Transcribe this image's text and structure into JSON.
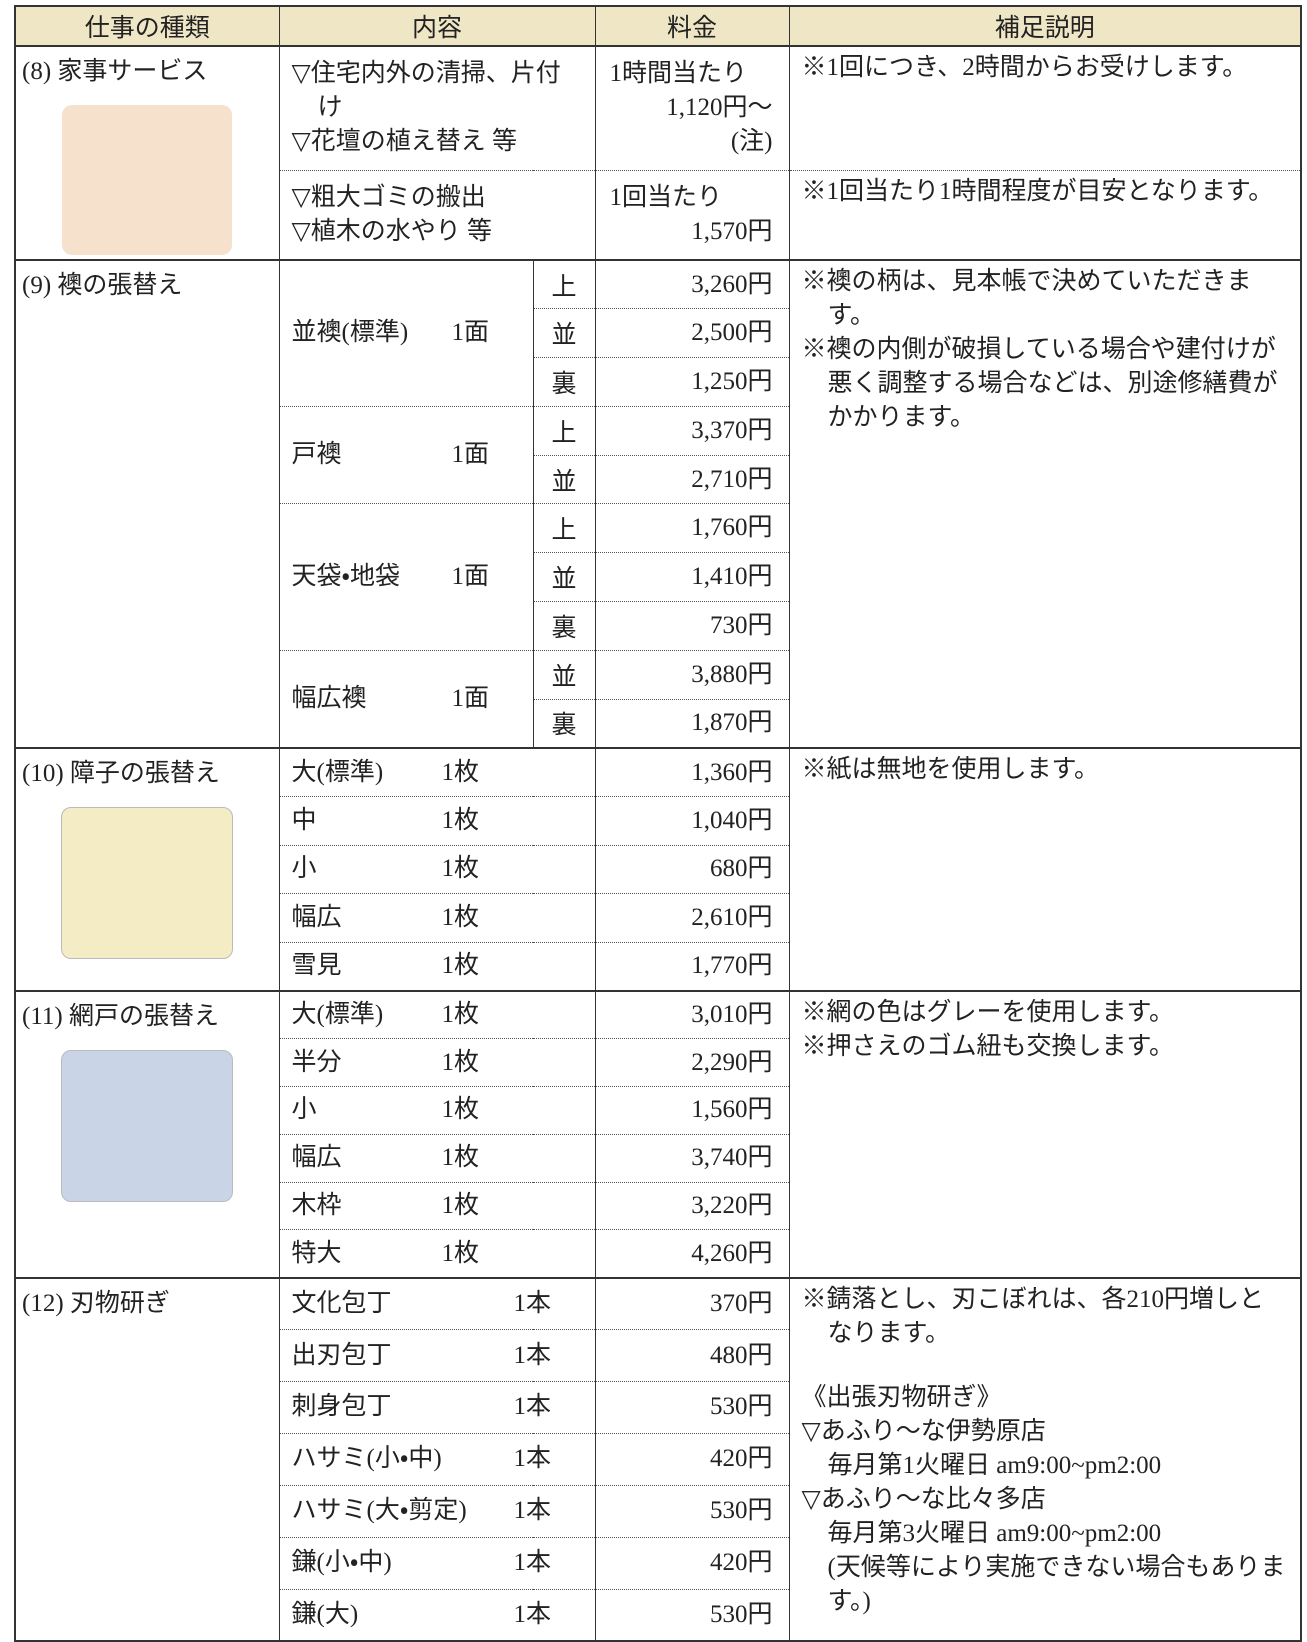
{
  "header": [
    "仕事の種類",
    "内容",
    "料金",
    "補足説明"
  ],
  "sections": [
    {
      "title": "(8) 家事サービス",
      "rows": [
        {
          "item": [
            "▽住宅内外の清掃、片付け",
            "▽花壇の植え替え 等"
          ],
          "price": [
            "1時間当たり",
            "1,120円～",
            "(注)"
          ],
          "notes": [
            "※1回につき、2時間からお受けします。"
          ]
        },
        {
          "item": [
            "▽粗大ゴミの搬出",
            "▽植木の水やり 等"
          ],
          "price": [
            "1回当たり",
            "1,570円"
          ],
          "notes": [
            "※1回当たり1時間程度が目安となります。"
          ]
        }
      ]
    },
    {
      "title": "(9) 襖の張替え",
      "rows": [
        {
          "item": "並襖(標準)",
          "unit": "1面",
          "grades": [
            {
              "grade": "上",
              "price": "3,260円"
            },
            {
              "grade": "並",
              "price": "2,500円"
            },
            {
              "grade": "裏",
              "price": "1,250円"
            }
          ]
        },
        {
          "item": "戸襖",
          "unit": "1面",
          "grades": [
            {
              "grade": "上",
              "price": "3,370円"
            },
            {
              "grade": "並",
              "price": "2,710円"
            }
          ]
        },
        {
          "item": "天袋・地袋",
          "unit": "1面",
          "grades": [
            {
              "grade": "上",
              "price": "1,760円"
            },
            {
              "grade": "並",
              "price": "1,410円"
            },
            {
              "grade": "裏",
              "price": "730円"
            }
          ]
        },
        {
          "item": "幅広襖",
          "unit": "1面",
          "grades": [
            {
              "grade": "並",
              "price": "3,880円"
            },
            {
              "grade": "裏",
              "price": "1,870円"
            }
          ]
        }
      ],
      "notes": [
        "※襖の柄は、見本帳で決めていただきます。",
        "※襖の内側が破損している場合や建付けが悪く調整する場合などは、別途修繕費がかかります。"
      ]
    },
    {
      "title": "(10) 障子の張替え",
      "rows": [
        {
          "item": "大(標準)",
          "unit": "1枚",
          "price": "1,360円"
        },
        {
          "item": "中",
          "unit": "1枚",
          "price": "1,040円"
        },
        {
          "item": "小",
          "unit": "1枚",
          "price": "680円"
        },
        {
          "item": "幅広",
          "unit": "1枚",
          "price": "2,610円"
        },
        {
          "item": "雪見",
          "unit": "1枚",
          "price": "1,770円"
        }
      ],
      "notes": [
        "※紙は無地を使用します。"
      ]
    },
    {
      "title": "(11) 網戸の張替え",
      "rows": [
        {
          "item": "大(標準)",
          "unit": "1枚",
          "price": "3,010円"
        },
        {
          "item": "半分",
          "unit": "1枚",
          "price": "2,290円"
        },
        {
          "item": "小",
          "unit": "1枚",
          "price": "1,560円"
        },
        {
          "item": "幅広",
          "unit": "1枚",
          "price": "3,740円"
        },
        {
          "item": "木枠",
          "unit": "1枚",
          "price": "3,220円"
        },
        {
          "item": "特大",
          "unit": "1枚",
          "price": "4,260円"
        }
      ],
      "notes": [
        "※網の色はグレーを使用します。",
        "※押さえのゴム紐も交換します。"
      ]
    },
    {
      "title": "(12) 刃物研ぎ",
      "rows": [
        {
          "item": "文化包丁",
          "unit": "1本",
          "price": "370円"
        },
        {
          "item": "出刃包丁",
          "unit": "1本",
          "price": "480円"
        },
        {
          "item": "刺身包丁",
          "unit": "1本",
          "price": "530円"
        },
        {
          "item": "ハサミ(小・中)",
          "unit": "1本",
          "price": "420円"
        },
        {
          "item": "ハサミ(大・剪定)",
          "unit": "1本",
          "price": "530円"
        },
        {
          "item": "鎌(小・中)",
          "unit": "1本",
          "price": "420円"
        },
        {
          "item": "鎌(大)",
          "unit": "1本",
          "price": "530円"
        }
      ],
      "notes": [
        "※錆落とし、刃こぼれは、各210円増しとなります。",
        "《出張刃物研ぎ》",
        "▽あふり～な伊勢原店",
        "毎月第1火曜日 am9:00~pm2:00",
        "▽あふり～な比々多店",
        "毎月第3火曜日 am9:00~pm2:00",
        "(天候等により実施できない場合もあります。)"
      ]
    }
  ]
}
